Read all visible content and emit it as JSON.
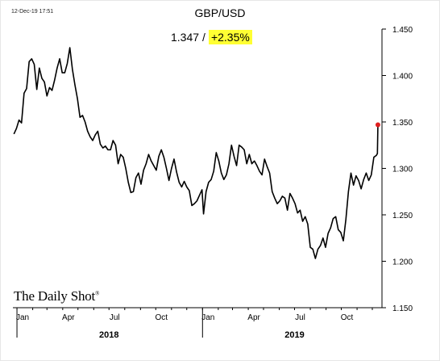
{
  "timestamp": "12-Dec-19 17:51",
  "chart_data": {
    "type": "line",
    "title": "GBP/USD",
    "last_value": "1.347",
    "separator": "/",
    "change": "+2.35%",
    "change_highlight_color": "#ffff33",
    "last_point_color": "#e02020",
    "source": "The Daily Shot",
    "source_mark": "®",
    "xlabel": "",
    "ylabel": "",
    "ylim": [
      1.15,
      1.45
    ],
    "xlim": [
      "2017-12-24",
      "2019-12-20"
    ],
    "yticks": [
      "1.450",
      "1.400",
      "1.350",
      "1.300",
      "1.250",
      "1.200",
      "1.150"
    ],
    "month_ticks": [
      {
        "date": "2018-01-01",
        "label": "Jan"
      },
      {
        "date": "2018-04-01",
        "label": "Apr"
      },
      {
        "date": "2018-07-01",
        "label": "Jul"
      },
      {
        "date": "2018-10-01",
        "label": "Oct"
      },
      {
        "date": "2019-01-01",
        "label": "Jan"
      },
      {
        "date": "2019-04-01",
        "label": "Apr"
      },
      {
        "date": "2019-07-01",
        "label": "Jul"
      },
      {
        "date": "2019-10-01",
        "label": "Oct"
      }
    ],
    "year_labels": [
      {
        "label": "2018",
        "date": "2018-07-01"
      },
      {
        "label": "2019",
        "date": "2019-07-01"
      }
    ],
    "grid": false,
    "series": [
      {
        "points": [
          [
            "2017-12-26",
            1.337
          ],
          [
            "2017-12-31",
            1.343
          ],
          [
            "2018-01-05",
            1.352
          ],
          [
            "2018-01-10",
            1.349
          ],
          [
            "2018-01-15",
            1.381
          ],
          [
            "2018-01-20",
            1.386
          ],
          [
            "2018-01-25",
            1.415
          ],
          [
            "2018-01-30",
            1.418
          ],
          [
            "2018-02-04",
            1.412
          ],
          [
            "2018-02-09",
            1.385
          ],
          [
            "2018-02-14",
            1.408
          ],
          [
            "2018-02-19",
            1.397
          ],
          [
            "2018-02-24",
            1.393
          ],
          [
            "2018-03-01",
            1.378
          ],
          [
            "2018-03-06",
            1.387
          ],
          [
            "2018-03-11",
            1.384
          ],
          [
            "2018-03-16",
            1.395
          ],
          [
            "2018-03-21",
            1.408
          ],
          [
            "2018-03-26",
            1.418
          ],
          [
            "2018-03-31",
            1.403
          ],
          [
            "2018-04-05",
            1.403
          ],
          [
            "2018-04-10",
            1.413
          ],
          [
            "2018-04-15",
            1.43
          ],
          [
            "2018-04-20",
            1.407
          ],
          [
            "2018-04-25",
            1.39
          ],
          [
            "2018-04-30",
            1.375
          ],
          [
            "2018-05-05",
            1.355
          ],
          [
            "2018-05-10",
            1.357
          ],
          [
            "2018-05-15",
            1.35
          ],
          [
            "2018-05-20",
            1.34
          ],
          [
            "2018-05-25",
            1.334
          ],
          [
            "2018-05-30",
            1.33
          ],
          [
            "2018-06-04",
            1.336
          ],
          [
            "2018-06-09",
            1.34
          ],
          [
            "2018-06-14",
            1.326
          ],
          [
            "2018-06-19",
            1.322
          ],
          [
            "2018-06-24",
            1.324
          ],
          [
            "2018-06-29",
            1.32
          ],
          [
            "2018-07-04",
            1.32
          ],
          [
            "2018-07-09",
            1.33
          ],
          [
            "2018-07-14",
            1.325
          ],
          [
            "2018-07-19",
            1.305
          ],
          [
            "2018-07-24",
            1.315
          ],
          [
            "2018-07-29",
            1.312
          ],
          [
            "2018-08-03",
            1.3
          ],
          [
            "2018-08-08",
            1.285
          ],
          [
            "2018-08-13",
            1.274
          ],
          [
            "2018-08-18",
            1.275
          ],
          [
            "2018-08-23",
            1.29
          ],
          [
            "2018-08-28",
            1.295
          ],
          [
            "2018-09-02",
            1.283
          ],
          [
            "2018-09-07",
            1.298
          ],
          [
            "2018-09-12",
            1.305
          ],
          [
            "2018-09-17",
            1.315
          ],
          [
            "2018-09-22",
            1.308
          ],
          [
            "2018-09-27",
            1.303
          ],
          [
            "2018-10-02",
            1.298
          ],
          [
            "2018-10-07",
            1.313
          ],
          [
            "2018-10-12",
            1.32
          ],
          [
            "2018-10-17",
            1.312
          ],
          [
            "2018-10-22",
            1.3
          ],
          [
            "2018-10-27",
            1.287
          ],
          [
            "2018-11-01",
            1.3
          ],
          [
            "2018-11-06",
            1.31
          ],
          [
            "2018-11-11",
            1.296
          ],
          [
            "2018-11-16",
            1.285
          ],
          [
            "2018-11-21",
            1.28
          ],
          [
            "2018-11-26",
            1.286
          ],
          [
            "2018-12-01",
            1.28
          ],
          [
            "2018-12-06",
            1.276
          ],
          [
            "2018-12-11",
            1.26
          ],
          [
            "2018-12-16",
            1.262
          ],
          [
            "2018-12-21",
            1.265
          ],
          [
            "2018-12-26",
            1.271
          ],
          [
            "2018-12-31",
            1.277
          ],
          [
            "2019-01-03",
            1.251
          ],
          [
            "2019-01-08",
            1.275
          ],
          [
            "2019-01-13",
            1.285
          ],
          [
            "2019-01-18",
            1.288
          ],
          [
            "2019-01-23",
            1.297
          ],
          [
            "2019-01-28",
            1.317
          ],
          [
            "2019-02-02",
            1.308
          ],
          [
            "2019-02-07",
            1.295
          ],
          [
            "2019-02-12",
            1.288
          ],
          [
            "2019-02-17",
            1.293
          ],
          [
            "2019-02-22",
            1.305
          ],
          [
            "2019-02-27",
            1.325
          ],
          [
            "2019-03-04",
            1.313
          ],
          [
            "2019-03-09",
            1.303
          ],
          [
            "2019-03-14",
            1.325
          ],
          [
            "2019-03-19",
            1.323
          ],
          [
            "2019-03-24",
            1.32
          ],
          [
            "2019-03-29",
            1.305
          ],
          [
            "2019-04-03",
            1.315
          ],
          [
            "2019-04-08",
            1.305
          ],
          [
            "2019-04-13",
            1.308
          ],
          [
            "2019-04-18",
            1.303
          ],
          [
            "2019-04-23",
            1.297
          ],
          [
            "2019-04-28",
            1.293
          ],
          [
            "2019-05-03",
            1.31
          ],
          [
            "2019-05-08",
            1.302
          ],
          [
            "2019-05-13",
            1.295
          ],
          [
            "2019-05-18",
            1.275
          ],
          [
            "2019-05-23",
            1.268
          ],
          [
            "2019-05-28",
            1.262
          ],
          [
            "2019-06-02",
            1.265
          ],
          [
            "2019-06-07",
            1.27
          ],
          [
            "2019-06-12",
            1.268
          ],
          [
            "2019-06-17",
            1.255
          ],
          [
            "2019-06-22",
            1.273
          ],
          [
            "2019-06-27",
            1.268
          ],
          [
            "2019-07-02",
            1.262
          ],
          [
            "2019-07-07",
            1.252
          ],
          [
            "2019-07-12",
            1.255
          ],
          [
            "2019-07-17",
            1.243
          ],
          [
            "2019-07-22",
            1.248
          ],
          [
            "2019-07-27",
            1.24
          ],
          [
            "2019-08-01",
            1.215
          ],
          [
            "2019-08-06",
            1.213
          ],
          [
            "2019-08-11",
            1.203
          ],
          [
            "2019-08-16",
            1.213
          ],
          [
            "2019-08-21",
            1.217
          ],
          [
            "2019-08-26",
            1.225
          ],
          [
            "2019-08-31",
            1.215
          ],
          [
            "2019-09-05",
            1.23
          ],
          [
            "2019-09-10",
            1.236
          ],
          [
            "2019-09-15",
            1.246
          ],
          [
            "2019-09-20",
            1.248
          ],
          [
            "2019-09-25",
            1.234
          ],
          [
            "2019-09-30",
            1.231
          ],
          [
            "2019-10-05",
            1.222
          ],
          [
            "2019-10-10",
            1.245
          ],
          [
            "2019-10-15",
            1.275
          ],
          [
            "2019-10-20",
            1.295
          ],
          [
            "2019-10-25",
            1.282
          ],
          [
            "2019-10-30",
            1.292
          ],
          [
            "2019-11-04",
            1.287
          ],
          [
            "2019-11-09",
            1.278
          ],
          [
            "2019-11-14",
            1.288
          ],
          [
            "2019-11-19",
            1.295
          ],
          [
            "2019-11-24",
            1.287
          ],
          [
            "2019-11-29",
            1.293
          ],
          [
            "2019-12-04",
            1.312
          ],
          [
            "2019-12-09",
            1.314
          ],
          [
            "2019-12-11",
            1.316
          ],
          [
            "2019-12-12",
            1.347
          ]
        ]
      }
    ]
  }
}
